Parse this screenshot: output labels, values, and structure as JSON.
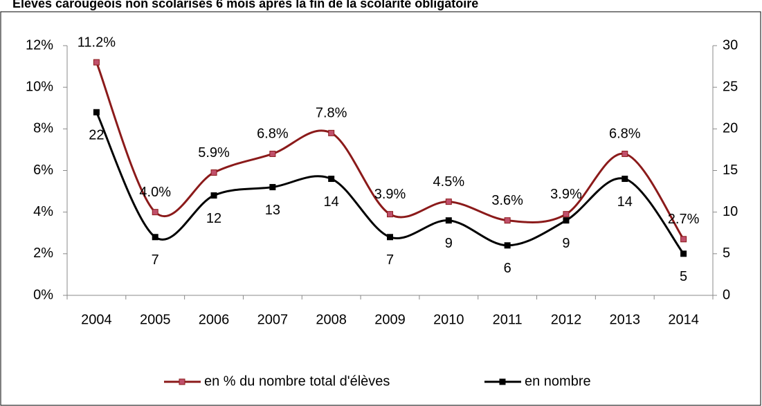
{
  "chart_data": {
    "type": "line",
    "title": "Elèves carougeois non scolarisés 6 mois après la fin de la scolarité obligatoire",
    "categories": [
      "2004",
      "2005",
      "2006",
      "2007",
      "2008",
      "2009",
      "2010",
      "2011",
      "2012",
      "2013",
      "2014"
    ],
    "series": [
      {
        "name": "en % du nombre total d'élèves",
        "color": "#8b1a1a",
        "marker_color": "#c0506b",
        "values": [
          11.2,
          4.0,
          5.9,
          6.8,
          7.8,
          3.9,
          4.5,
          3.6,
          3.9,
          6.8,
          2.7
        ],
        "value_labels": [
          "11.2%",
          "4.0%",
          "5.9%",
          "6.8%",
          "7.8%",
          "3.9%",
          "4.5%",
          "3.6%",
          "3.9%",
          "6.8%",
          "2.7%"
        ]
      },
      {
        "name": "en nombre",
        "color": "#000000",
        "marker_color": "#000000",
        "axis": "y2",
        "values": [
          22,
          7,
          12,
          13,
          14,
          7,
          9,
          6,
          9,
          14,
          5
        ]
      }
    ],
    "ylim": [
      0,
      12
    ],
    "yticks": [
      {
        "value": 0,
        "label": "0%"
      },
      {
        "value": 2,
        "label": "2%"
      },
      {
        "value": 4,
        "label": "4%"
      },
      {
        "value": 6,
        "label": "6%"
      },
      {
        "value": 8,
        "label": "8%"
      },
      {
        "value": 10,
        "label": "10%"
      },
      {
        "value": 12,
        "label": "12%"
      }
    ],
    "y2lim": [
      0,
      30
    ],
    "y2ticks": [
      0,
      5,
      10,
      15,
      20,
      25,
      30
    ],
    "smooth": true,
    "legend": "bottom"
  }
}
